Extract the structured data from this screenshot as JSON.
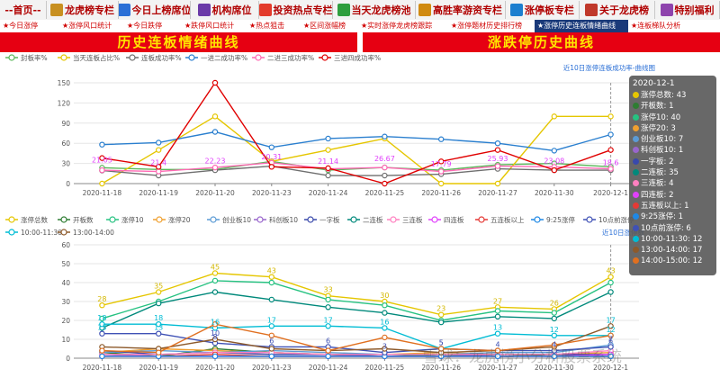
{
  "nav": [
    {
      "label": "--首页--",
      "icon": "none",
      "color": "#ffffff"
    },
    {
      "label": "龙虎榜专栏",
      "icon": "tiger-icon",
      "color": "#c89020"
    },
    {
      "label": "今日上榜席位",
      "icon": "chart-icon",
      "color": "#2a6fd6"
    },
    {
      "label": "机构席位",
      "icon": "building-icon",
      "color": "#6a3aa8"
    },
    {
      "label": "投资热点专栏",
      "icon": "fire-icon",
      "color": "#e33a2b"
    },
    {
      "label": "当天龙虎榜池",
      "icon": "pool-icon",
      "color": "#2e9e3e"
    },
    {
      "label": "高胜率游资专栏",
      "icon": "trophy-icon",
      "color": "#d08a10"
    },
    {
      "label": "涨停板专栏",
      "icon": "rocket-icon",
      "color": "#1c7fcf"
    },
    {
      "label": "关于龙虎榜",
      "icon": "info-icon",
      "color": "#c0392b"
    },
    {
      "label": "特别福利",
      "icon": "gift-icon",
      "color": "#8e44ad"
    }
  ],
  "tabs": [
    {
      "label": "★今日涨停",
      "active": false
    },
    {
      "label": "★涨停风口统计",
      "active": false
    },
    {
      "label": "★今日跌停",
      "active": false
    },
    {
      "label": "★跌停风口统计",
      "active": false
    },
    {
      "label": "★热点狙击",
      "active": false
    },
    {
      "label": "★区间涨幅榜",
      "active": false
    },
    {
      "label": "★实时涨停龙虎榜跟踪",
      "active": false
    },
    {
      "label": "★涨停题材历史排行榜",
      "active": false
    },
    {
      "label": "★涨停历史连板情绪曲线",
      "active": true
    },
    {
      "label": "★连板梯队分析",
      "active": false
    }
  ],
  "banners": {
    "left": "历史连板情绪曲线",
    "right": "涨跌停历史曲线"
  },
  "tooltip": {
    "title": "2020-12-1",
    "rows": [
      {
        "label": "涨停总数: 43",
        "color": "#e5c600"
      },
      {
        "label": "开板数: 1",
        "color": "#2e7d32"
      },
      {
        "label": "涨停10: 40",
        "color": "#26c281"
      },
      {
        "label": "涨停20: 3",
        "color": "#f0a030"
      },
      {
        "label": "创业板10: 7",
        "color": "#5b9bd5"
      },
      {
        "label": "科创板10: 1",
        "color": "#9966cc"
      },
      {
        "label": "一字板: 2",
        "color": "#3949ab"
      },
      {
        "label": "二连板: 35",
        "color": "#00897b"
      },
      {
        "label": "三连板: 4",
        "color": "#ff80c0"
      },
      {
        "label": "四连板: 2",
        "color": "#e040fb"
      },
      {
        "label": "五连板以上: 1",
        "color": "#e53935"
      },
      {
        "label": "9:25涨停: 1",
        "color": "#1e88e5"
      },
      {
        "label": "10点前涨停: 6",
        "color": "#3f51b5"
      },
      {
        "label": "10:00-11:30: 12",
        "color": "#00bcd4"
      },
      {
        "label": "13:00-14:00: 17",
        "color": "#8d5a2b"
      },
      {
        "label": "14:00-15:00: 12",
        "color": "#e07020"
      }
    ]
  },
  "watermark": "雪球：龙虎榜小分析股票系统",
  "chart_data": [
    {
      "type": "line",
      "note": "近10日涨停连板成功率-曲线图",
      "ylim": [
        0,
        150
      ],
      "yticks": [
        0,
        30,
        60,
        90,
        120,
        150
      ],
      "categories": [
        "2020-11-18",
        "2020-11-19",
        "2020-11-20",
        "2020-11-23",
        "2020-11-24",
        "2020-11-25",
        "2020-11-26",
        "2020-11-27",
        "2020-11-30",
        "2020-12-1"
      ],
      "series": [
        {
          "name": "封板率%",
          "color": "#5cb85c",
          "values": [
            23.6,
            21,
            21,
            33,
            20,
            24,
            20,
            28,
            30,
            25
          ]
        },
        {
          "name": "当天连板占比%",
          "color": "#e5c600",
          "values": [
            0,
            50,
            100,
            33,
            50,
            67,
            0,
            0,
            100,
            100
          ]
        },
        {
          "name": "连板成功率%",
          "color": "#6f6f6f",
          "values": [
            19.5,
            12,
            20,
            26,
            12,
            12,
            14,
            22,
            20,
            20
          ]
        },
        {
          "name": "一进二成功率%",
          "color": "#2a7fcf",
          "values": [
            58,
            61,
            77,
            54,
            67,
            70,
            66,
            60,
            49,
            73
          ]
        },
        {
          "name": "二进三成功率%",
          "color": "#ff69b4",
          "values": [
            20,
            18,
            24,
            31,
            22,
            24,
            18,
            26,
            25,
            22
          ]
        },
        {
          "name": "三进四成功率%",
          "color": "#e00000",
          "values": [
            38,
            25,
            150,
            25,
            23,
            0,
            33,
            50,
            20,
            50
          ]
        }
      ],
      "labels": [
        {
          "text": "21.05",
          "x": 0,
          "y": 26
        },
        {
          "text": "21.4",
          "x": 1,
          "y": 22
        },
        {
          "text": "22.23",
          "x": 2,
          "y": 25
        },
        {
          "text": "20.31",
          "x": 3,
          "y": 31
        },
        {
          "text": "21.14",
          "x": 4,
          "y": 24
        },
        {
          "text": "26.67",
          "x": 5,
          "y": 28
        },
        {
          "text": "17.79",
          "x": 6,
          "y": 20
        },
        {
          "text": "25.93",
          "x": 7,
          "y": 28
        },
        {
          "text": "23.08",
          "x": 8,
          "y": 25
        },
        {
          "text": "18.6",
          "x": 9,
          "y": 22
        }
      ]
    },
    {
      "type": "line",
      "note": "近10日涨停数",
      "ylim": [
        0,
        60
      ],
      "yticks": [
        0,
        10,
        20,
        30,
        40,
        50,
        60
      ],
      "categories": [
        "2020-11-18",
        "2020-11-19",
        "2020-11-20",
        "2020-11-23",
        "2020-11-24",
        "2020-11-25",
        "2020-11-26",
        "2020-11-27",
        "2020-11-30",
        "2020-12-1"
      ],
      "series": [
        {
          "name": "涨停总数",
          "color": "#e5c600",
          "values": [
            28,
            35,
            45,
            43,
            33,
            30,
            23,
            27,
            26,
            43
          ]
        },
        {
          "name": "开板数",
          "color": "#2e7d32",
          "values": [
            3,
            1,
            5,
            3,
            2,
            1,
            2,
            1,
            2,
            1
          ]
        },
        {
          "name": "涨停10",
          "color": "#26c281",
          "values": [
            21,
            30,
            41,
            40,
            31,
            28,
            20,
            25,
            24,
            40
          ]
        },
        {
          "name": "涨停20",
          "color": "#f0a030",
          "values": [
            3,
            5,
            4,
            3,
            2,
            2,
            3,
            2,
            2,
            3
          ]
        },
        {
          "name": "创业板10",
          "color": "#5b9bd5",
          "values": [
            3,
            4,
            3,
            4,
            3,
            2,
            2,
            3,
            3,
            7
          ]
        },
        {
          "name": "科创板10",
          "color": "#9966cc",
          "values": [
            2,
            1,
            1,
            1,
            1,
            1,
            1,
            1,
            1,
            1
          ]
        },
        {
          "name": "一字板",
          "color": "#3949ab",
          "values": [
            4,
            2,
            3,
            2,
            2,
            1,
            1,
            2,
            2,
            2
          ]
        },
        {
          "name": "二连板",
          "color": "#00897b",
          "values": [
            16,
            29,
            35,
            31,
            27,
            24,
            19,
            22,
            21,
            35
          ]
        },
        {
          "name": "三连板",
          "color": "#ff80c0",
          "values": [
            2,
            2,
            3,
            3,
            2,
            2,
            2,
            2,
            2,
            4
          ]
        },
        {
          "name": "四连板",
          "color": "#e040fb",
          "values": [
            1,
            1,
            1,
            1,
            1,
            1,
            1,
            1,
            1,
            2
          ]
        },
        {
          "name": "五连板以上",
          "color": "#e53935",
          "values": [
            1,
            1,
            2,
            1,
            1,
            1,
            1,
            1,
            1,
            1
          ]
        },
        {
          "name": "9:25涨停",
          "color": "#1e88e5",
          "values": [
            1,
            1,
            1,
            1,
            1,
            1,
            1,
            1,
            1,
            1
          ]
        },
        {
          "name": "10点前涨停",
          "color": "#3f51b5",
          "values": [
            13,
            13,
            8,
            6,
            6,
            3,
            5,
            4,
            4,
            6
          ]
        },
        {
          "name": "10:00-11:30",
          "color": "#00bcd4",
          "values": [
            18,
            18,
            16,
            17,
            17,
            16,
            5,
            13,
            12,
            12
          ]
        },
        {
          "name": "13:00-14:00",
          "color": "#8d5a2b",
          "values": [
            6,
            5,
            10,
            5,
            4,
            5,
            3,
            4,
            6,
            17
          ]
        },
        {
          "name": "14:00-15:00",
          "color": "#e07020",
          "values": [
            4,
            3,
            18,
            12,
            4,
            11,
            5,
            4,
            7,
            12
          ]
        }
      ],
      "labels": [
        {
          "text": "28",
          "x": 0,
          "y": 28
        },
        {
          "text": "35",
          "x": 1,
          "y": 35
        },
        {
          "text": "45",
          "x": 2,
          "y": 45
        },
        {
          "text": "43",
          "x": 3,
          "y": 43
        },
        {
          "text": "33",
          "x": 4,
          "y": 33
        },
        {
          "text": "30",
          "x": 5,
          "y": 30
        },
        {
          "text": "23",
          "x": 6,
          "y": 23
        },
        {
          "text": "27",
          "x": 7,
          "y": 27
        },
        {
          "text": "26",
          "x": 8,
          "y": 26
        },
        {
          "text": "43",
          "x": 9,
          "y": 43
        },
        {
          "text": "13",
          "x": 0,
          "y": 13
        },
        {
          "text": "13",
          "x": 1,
          "y": 13
        },
        {
          "text": "8",
          "x": 2,
          "y": 8
        },
        {
          "text": "6",
          "x": 3,
          "y": 6
        },
        {
          "text": "6",
          "x": 4,
          "y": 6
        },
        {
          "text": "3",
          "x": 5,
          "y": 3
        },
        {
          "text": "5",
          "x": 6,
          "y": 5
        },
        {
          "text": "4",
          "x": 7,
          "y": 4
        },
        {
          "text": "4",
          "x": 8,
          "y": 4
        },
        {
          "text": "6",
          "x": 9,
          "y": 6
        },
        {
          "text": "18",
          "x": 0,
          "y": 18
        },
        {
          "text": "18",
          "x": 1,
          "y": 18
        },
        {
          "text": "16",
          "x": 2,
          "y": 16
        },
        {
          "text": "17",
          "x": 3,
          "y": 17
        },
        {
          "text": "17",
          "x": 4,
          "y": 17
        },
        {
          "text": "16",
          "x": 5,
          "y": 16
        },
        {
          "text": "5",
          "x": 6,
          "y": 5
        },
        {
          "text": "13",
          "x": 7,
          "y": 13
        },
        {
          "text": "12",
          "x": 8,
          "y": 12
        },
        {
          "text": "12",
          "x": 9,
          "y": 12
        },
        {
          "text": "10",
          "x": 2,
          "y": 10
        },
        {
          "text": "17",
          "x": 9,
          "y": 17
        },
        {
          "text": "7",
          "x": 9,
          "y": 7
        }
      ]
    }
  ]
}
